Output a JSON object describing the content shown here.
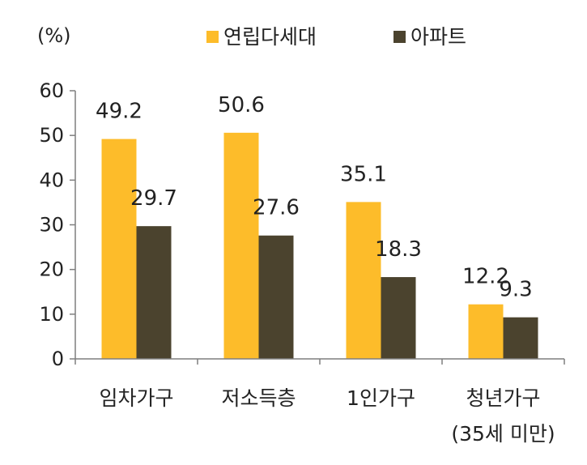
{
  "chart_data": {
    "type": "bar",
    "unit_label": "(%)",
    "categories": [
      "임차가구",
      "저소득층",
      "1인가구",
      "청년가구"
    ],
    "category_sublabels": [
      "",
      "",
      "",
      "(35세 미만)"
    ],
    "series": [
      {
        "name": "연립다세대",
        "values": [
          49.2,
          50.6,
          35.1,
          12.2
        ],
        "color": "#FDBC2A"
      },
      {
        "name": "아파트",
        "values": [
          29.7,
          27.6,
          18.3,
          9.3
        ],
        "color": "#4B432E"
      }
    ],
    "value_labels": [
      [
        "49.2",
        "50.6",
        "35.1",
        "12.2"
      ],
      [
        "29.7",
        "27.6",
        "18.3",
        "9.3"
      ]
    ],
    "yticks": [
      "0",
      "10",
      "20",
      "30",
      "40",
      "50",
      "60"
    ],
    "ylim": [
      0,
      60
    ],
    "grid": false,
    "legend_position": "top-center"
  }
}
